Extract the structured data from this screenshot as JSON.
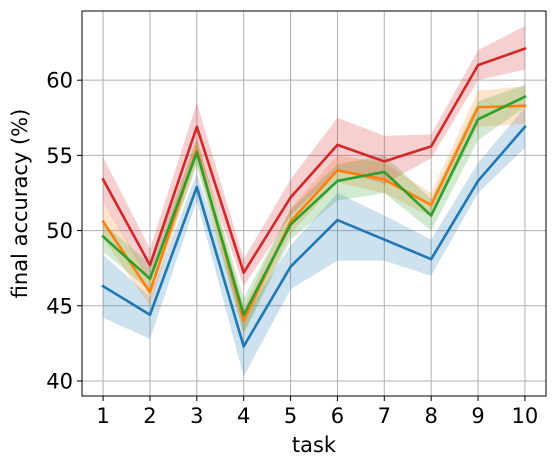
{
  "chart_data": {
    "type": "line",
    "xlabel": "task",
    "ylabel": "final accuracy (%)",
    "x": [
      1,
      2,
      3,
      4,
      5,
      6,
      7,
      8,
      9,
      10
    ],
    "xticks": [
      "1",
      "2",
      "3",
      "4",
      "5",
      "6",
      "7",
      "8",
      "9",
      "10"
    ],
    "yticks": [
      "40",
      "45",
      "50",
      "55",
      "60"
    ],
    "xlim": [
      0.55,
      10.45
    ],
    "ylim": [
      39.0,
      64.6
    ],
    "grid": true,
    "series": [
      {
        "color": "#1f77b4",
        "values": [
          46.3,
          44.4,
          52.9,
          42.3,
          47.6,
          50.7,
          49.4,
          48.1,
          53.3,
          56.9
        ],
        "lower": [
          44.2,
          42.8,
          52.0,
          40.3,
          46.1,
          48.0,
          48.0,
          47.0,
          52.5,
          55.5
        ],
        "upper": [
          48.4,
          45.6,
          53.8,
          44.2,
          49.0,
          52.5,
          51.0,
          49.4,
          54.5,
          58.2
        ]
      },
      {
        "color": "#ff7f0e",
        "values": [
          50.6,
          45.9,
          55.4,
          44.0,
          50.6,
          54.0,
          53.4,
          51.7,
          58.2,
          58.3
        ],
        "lower": [
          49.5,
          45.0,
          54.6,
          43.2,
          49.8,
          53.2,
          52.5,
          50.9,
          56.9,
          57.1
        ],
        "upper": [
          51.9,
          46.8,
          56.2,
          44.9,
          51.5,
          55.0,
          54.5,
          52.5,
          59.3,
          59.6
        ]
      },
      {
        "color": "#2ca02c",
        "values": [
          49.6,
          46.8,
          55.2,
          44.4,
          50.4,
          53.3,
          53.9,
          51.0,
          57.4,
          58.9
        ],
        "lower": [
          48.6,
          46.0,
          54.3,
          43.1,
          49.4,
          52.0,
          52.5,
          50.0,
          56.0,
          58.2
        ],
        "upper": [
          50.5,
          47.8,
          56.1,
          45.5,
          51.4,
          54.4,
          55.0,
          52.1,
          58.6,
          59.7
        ]
      },
      {
        "color": "#d62728",
        "values": [
          53.4,
          47.7,
          56.9,
          47.2,
          52.2,
          55.7,
          54.6,
          55.6,
          61.0,
          62.1
        ],
        "lower": [
          51.9,
          46.6,
          55.4,
          46.3,
          51.0,
          54.0,
          53.1,
          54.8,
          60.0,
          60.7
        ],
        "upper": [
          54.9,
          48.8,
          58.5,
          48.1,
          53.4,
          57.5,
          56.3,
          56.4,
          62.0,
          63.6
        ]
      }
    ]
  }
}
